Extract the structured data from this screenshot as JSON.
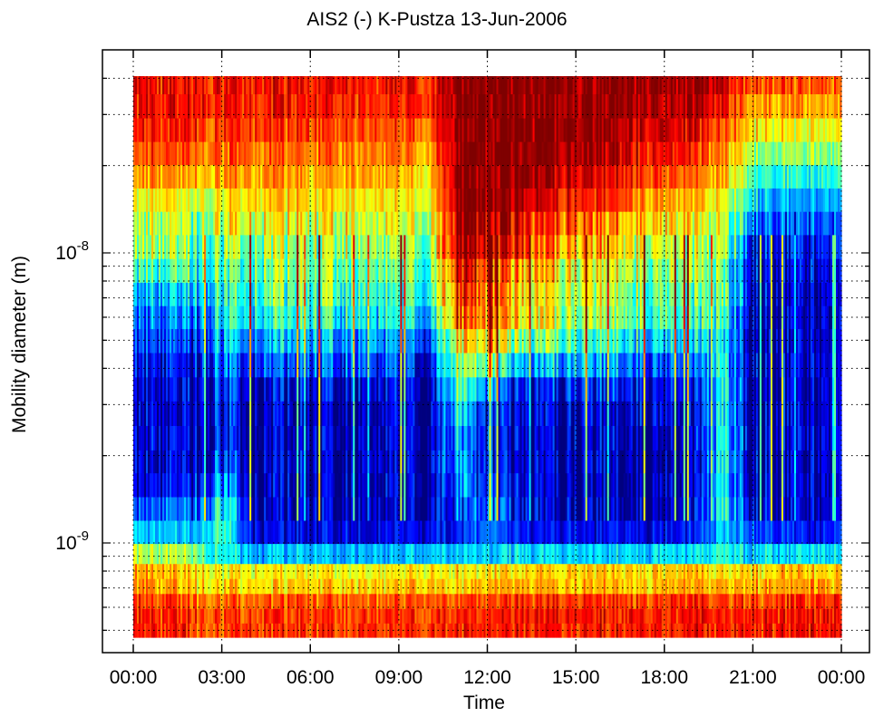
{
  "chart_data": {
    "type": "heatmap",
    "title": "AIS2 (-) K-Pustza 13-Jun-2006",
    "xlabel": "Time",
    "ylabel": "Mobility diameter (m)",
    "x_ticks": [
      "00:00",
      "03:00",
      "06:00",
      "09:00",
      "12:00",
      "15:00",
      "18:00",
      "21:00",
      "00:00"
    ],
    "x_range_hours": [
      0,
      24
    ],
    "y_scale": "log",
    "y_ticks": [
      {
        "value": 1e-09,
        "base": "10",
        "exponent": "-9"
      },
      {
        "value": 1e-08,
        "base": "10",
        "exponent": "-8"
      }
    ],
    "y_range": [
      4.6e-10,
      6.2e-08
    ],
    "grid": "dotted",
    "colormap": "jet",
    "colormap_colors": [
      "#00007f",
      "#0000ff",
      "#007fff",
      "#00ffff",
      "#7fff7f",
      "#ffff00",
      "#ff7f00",
      "#ff0000",
      "#7f0000"
    ],
    "size_bins_m": [
      5e-10,
      5.6e-10,
      6.3e-10,
      7.1e-10,
      8e-10,
      9e-10,
      1.1e-09,
      1.3e-09,
      1.6e-09,
      1.9e-09,
      2.3e-09,
      2.8e-09,
      3.4e-09,
      4.1e-09,
      5e-09,
      6e-09,
      7.2e-09,
      8.7e-09,
      1.05e-08,
      1.27e-08,
      1.52e-08,
      1.84e-08,
      2.2e-08,
      2.66e-08,
      3.2e-08,
      3.9e-08,
      4.7e-08,
      5.7e-08
    ],
    "time_hours": [
      0,
      1,
      2,
      3,
      4,
      5,
      6,
      7,
      8,
      9,
      10,
      11,
      12,
      13,
      14,
      15,
      16,
      17,
      18,
      19,
      20,
      21,
      22,
      23,
      24
    ],
    "intensity_profiles": [
      [
        0.86,
        0.86,
        0.82,
        0.72,
        0.7,
        0.56,
        0.3,
        0.15,
        0.05,
        0.05,
        0.05,
        0.05,
        0.05,
        0.1,
        0.15,
        0.2,
        0.25,
        0.4,
        0.5,
        0.5,
        0.6,
        0.7,
        0.78,
        0.84,
        0.86,
        0.86,
        0.86,
        0.86
      ],
      [
        0.84,
        0.84,
        0.8,
        0.7,
        0.68,
        0.54,
        0.3,
        0.2,
        0.1,
        0.05,
        0.05,
        0.05,
        0.05,
        0.08,
        0.15,
        0.2,
        0.28,
        0.4,
        0.5,
        0.55,
        0.62,
        0.72,
        0.8,
        0.84,
        0.86,
        0.86,
        0.86,
        0.86
      ],
      [
        0.82,
        0.82,
        0.78,
        0.66,
        0.64,
        0.5,
        0.3,
        0.2,
        0.08,
        0.05,
        0.05,
        0.05,
        0.05,
        0.08,
        0.15,
        0.22,
        0.3,
        0.4,
        0.45,
        0.5,
        0.6,
        0.7,
        0.78,
        0.84,
        0.86,
        0.86,
        0.86,
        0.86
      ],
      [
        0.8,
        0.8,
        0.76,
        0.65,
        0.62,
        0.4,
        0.45,
        0.4,
        0.3,
        0.2,
        0.15,
        0.15,
        0.2,
        0.25,
        0.3,
        0.38,
        0.42,
        0.45,
        0.52,
        0.58,
        0.62,
        0.7,
        0.78,
        0.82,
        0.85,
        0.86,
        0.86,
        0.86
      ],
      [
        0.82,
        0.82,
        0.78,
        0.66,
        0.62,
        0.3,
        0.1,
        0.08,
        0.05,
        0.05,
        0.05,
        0.05,
        0.05,
        0.15,
        0.25,
        0.35,
        0.4,
        0.45,
        0.5,
        0.6,
        0.65,
        0.72,
        0.78,
        0.82,
        0.85,
        0.86,
        0.86,
        0.86
      ],
      [
        0.82,
        0.82,
        0.78,
        0.66,
        0.62,
        0.3,
        0.1,
        0.05,
        0.05,
        0.05,
        0.05,
        0.05,
        0.08,
        0.2,
        0.3,
        0.42,
        0.48,
        0.5,
        0.52,
        0.6,
        0.68,
        0.72,
        0.78,
        0.82,
        0.85,
        0.86,
        0.86,
        0.86
      ],
      [
        0.82,
        0.82,
        0.78,
        0.66,
        0.62,
        0.3,
        0.1,
        0.05,
        0.05,
        0.05,
        0.05,
        0.05,
        0.08,
        0.2,
        0.3,
        0.4,
        0.45,
        0.48,
        0.5,
        0.58,
        0.65,
        0.7,
        0.76,
        0.82,
        0.85,
        0.86,
        0.86,
        0.86
      ],
      [
        0.82,
        0.82,
        0.78,
        0.66,
        0.62,
        0.3,
        0.1,
        0.05,
        0.05,
        0.05,
        0.05,
        0.05,
        0.08,
        0.18,
        0.28,
        0.38,
        0.45,
        0.5,
        0.55,
        0.6,
        0.65,
        0.7,
        0.76,
        0.8,
        0.84,
        0.86,
        0.86,
        0.86
      ],
      [
        0.82,
        0.82,
        0.78,
        0.66,
        0.62,
        0.3,
        0.1,
        0.05,
        0.05,
        0.05,
        0.05,
        0.05,
        0.08,
        0.18,
        0.28,
        0.35,
        0.4,
        0.45,
        0.52,
        0.58,
        0.65,
        0.7,
        0.76,
        0.8,
        0.84,
        0.86,
        0.86,
        0.86
      ],
      [
        0.82,
        0.82,
        0.78,
        0.66,
        0.62,
        0.3,
        0.1,
        0.05,
        0.05,
        0.05,
        0.05,
        0.05,
        0.08,
        0.15,
        0.25,
        0.35,
        0.4,
        0.45,
        0.5,
        0.55,
        0.62,
        0.68,
        0.74,
        0.8,
        0.84,
        0.86,
        0.86,
        0.86
      ],
      [
        0.84,
        0.84,
        0.8,
        0.68,
        0.64,
        0.32,
        0.1,
        0.05,
        0.05,
        0.05,
        0.05,
        0.05,
        0.05,
        0.1,
        0.2,
        0.3,
        0.4,
        0.45,
        0.5,
        0.55,
        0.6,
        0.66,
        0.72,
        0.78,
        0.82,
        0.84,
        0.85,
        0.86
      ],
      [
        0.84,
        0.84,
        0.8,
        0.68,
        0.64,
        0.32,
        0.15,
        0.2,
        0.25,
        0.3,
        0.3,
        0.35,
        0.45,
        0.55,
        0.65,
        0.8,
        0.85,
        0.88,
        0.95,
        0.98,
        0.99,
        0.99,
        0.99,
        0.99,
        0.99,
        0.99,
        0.99,
        0.99
      ],
      [
        0.84,
        0.84,
        0.8,
        0.68,
        0.64,
        0.32,
        0.25,
        0.2,
        0.15,
        0.12,
        0.1,
        0.12,
        0.25,
        0.45,
        0.65,
        0.75,
        0.78,
        0.82,
        0.92,
        0.97,
        0.99,
        0.99,
        0.99,
        0.99,
        0.99,
        0.99,
        0.99,
        0.99
      ],
      [
        0.86,
        0.86,
        0.82,
        0.7,
        0.66,
        0.34,
        0.15,
        0.1,
        0.08,
        0.05,
        0.05,
        0.08,
        0.12,
        0.3,
        0.5,
        0.62,
        0.65,
        0.72,
        0.84,
        0.9,
        0.96,
        0.98,
        0.99,
        0.99,
        0.99,
        0.99,
        0.99,
        0.99
      ],
      [
        0.86,
        0.86,
        0.82,
        0.7,
        0.66,
        0.34,
        0.12,
        0.05,
        0.05,
        0.05,
        0.05,
        0.08,
        0.12,
        0.3,
        0.48,
        0.6,
        0.62,
        0.65,
        0.75,
        0.82,
        0.9,
        0.94,
        0.97,
        0.98,
        0.99,
        0.99,
        0.99,
        0.99
      ],
      [
        0.86,
        0.86,
        0.82,
        0.7,
        0.66,
        0.34,
        0.12,
        0.05,
        0.05,
        0.05,
        0.05,
        0.08,
        0.15,
        0.3,
        0.45,
        0.55,
        0.58,
        0.62,
        0.7,
        0.78,
        0.86,
        0.92,
        0.96,
        0.98,
        0.99,
        0.99,
        0.99,
        0.99
      ],
      [
        0.86,
        0.86,
        0.82,
        0.7,
        0.66,
        0.34,
        0.12,
        0.05,
        0.05,
        0.05,
        0.05,
        0.08,
        0.15,
        0.28,
        0.42,
        0.52,
        0.55,
        0.6,
        0.68,
        0.75,
        0.82,
        0.88,
        0.94,
        0.97,
        0.99,
        0.99,
        0.99,
        0.99
      ],
      [
        0.86,
        0.86,
        0.82,
        0.7,
        0.66,
        0.34,
        0.12,
        0.05,
        0.05,
        0.05,
        0.05,
        0.08,
        0.15,
        0.25,
        0.38,
        0.48,
        0.5,
        0.55,
        0.62,
        0.7,
        0.78,
        0.85,
        0.9,
        0.95,
        0.98,
        0.99,
        0.99,
        0.99
      ],
      [
        0.86,
        0.86,
        0.82,
        0.7,
        0.66,
        0.34,
        0.12,
        0.05,
        0.05,
        0.05,
        0.05,
        0.08,
        0.12,
        0.22,
        0.35,
        0.45,
        0.48,
        0.52,
        0.58,
        0.65,
        0.72,
        0.8,
        0.86,
        0.92,
        0.96,
        0.98,
        0.99,
        0.99
      ],
      [
        0.86,
        0.86,
        0.82,
        0.7,
        0.66,
        0.34,
        0.12,
        0.05,
        0.05,
        0.05,
        0.05,
        0.05,
        0.1,
        0.18,
        0.3,
        0.4,
        0.45,
        0.5,
        0.55,
        0.62,
        0.68,
        0.75,
        0.82,
        0.88,
        0.94,
        0.96,
        0.98,
        0.99
      ],
      [
        0.86,
        0.86,
        0.82,
        0.7,
        0.66,
        0.4,
        0.35,
        0.4,
        0.4,
        0.4,
        0.4,
        0.4,
        0.4,
        0.4,
        0.4,
        0.45,
        0.5,
        0.5,
        0.55,
        0.6,
        0.65,
        0.7,
        0.75,
        0.8,
        0.88,
        0.92,
        0.96,
        0.98
      ],
      [
        0.86,
        0.86,
        0.82,
        0.7,
        0.66,
        0.34,
        0.2,
        0.08,
        0.05,
        0.05,
        0.05,
        0.05,
        0.05,
        0.05,
        0.05,
        0.05,
        0.08,
        0.1,
        0.15,
        0.25,
        0.35,
        0.45,
        0.55,
        0.65,
        0.72,
        0.8,
        0.84,
        0.86
      ],
      [
        0.86,
        0.86,
        0.82,
        0.7,
        0.66,
        0.34,
        0.15,
        0.05,
        0.05,
        0.05,
        0.05,
        0.05,
        0.05,
        0.05,
        0.05,
        0.05,
        0.05,
        0.08,
        0.12,
        0.18,
        0.28,
        0.4,
        0.5,
        0.62,
        0.72,
        0.8,
        0.84,
        0.86
      ],
      [
        0.88,
        0.88,
        0.84,
        0.72,
        0.68,
        0.34,
        0.12,
        0.05,
        0.05,
        0.05,
        0.05,
        0.05,
        0.05,
        0.05,
        0.05,
        0.05,
        0.05,
        0.08,
        0.12,
        0.18,
        0.28,
        0.4,
        0.5,
        0.6,
        0.7,
        0.78,
        0.84,
        0.86
      ],
      [
        0.86,
        0.86,
        0.82,
        0.7,
        0.66,
        0.34,
        0.15,
        0.05,
        0.05,
        0.05,
        0.05,
        0.05,
        0.05,
        0.05,
        0.05,
        0.05,
        0.05,
        0.08,
        0.12,
        0.18,
        0.28,
        0.4,
        0.5,
        0.6,
        0.7,
        0.78,
        0.84,
        0.86
      ]
    ],
    "transition_hours": {
      "burst_start": 10.15,
      "burst_end": 20.3
    },
    "annotations": []
  }
}
